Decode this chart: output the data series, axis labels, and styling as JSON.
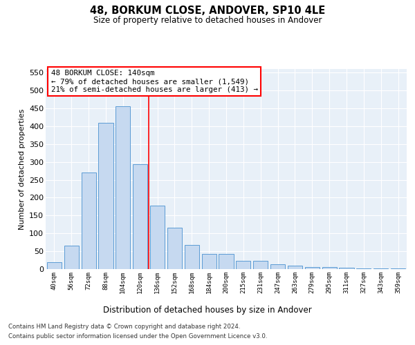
{
  "title": "48, BORKUM CLOSE, ANDOVER, SP10 4LE",
  "subtitle": "Size of property relative to detached houses in Andover",
  "xlabel": "Distribution of detached houses by size in Andover",
  "ylabel": "Number of detached properties",
  "bar_color": "#c6d9f0",
  "bar_edge_color": "#5b9bd5",
  "background_color": "#e8f0f8",
  "grid_color": "#ffffff",
  "categories": [
    "40sqm",
    "56sqm",
    "72sqm",
    "88sqm",
    "104sqm",
    "120sqm",
    "136sqm",
    "152sqm",
    "168sqm",
    "184sqm",
    "200sqm",
    "215sqm",
    "231sqm",
    "247sqm",
    "263sqm",
    "279sqm",
    "295sqm",
    "311sqm",
    "327sqm",
    "343sqm",
    "359sqm"
  ],
  "values": [
    20,
    65,
    270,
    410,
    455,
    293,
    178,
    115,
    67,
    42,
    42,
    23,
    23,
    14,
    10,
    5,
    5,
    4,
    2,
    2,
    2
  ],
  "annotation_title": "48 BORKUM CLOSE: 140sqm",
  "annotation_line1": "← 79% of detached houses are smaller (1,549)",
  "annotation_line2": "21% of semi-detached houses are larger (413) →",
  "red_line_x": 5.5,
  "ylim": [
    0,
    560
  ],
  "yticks": [
    0,
    50,
    100,
    150,
    200,
    250,
    300,
    350,
    400,
    450,
    500,
    550
  ],
  "footnote1": "Contains HM Land Registry data © Crown copyright and database right 2024.",
  "footnote2": "Contains public sector information licensed under the Open Government Licence v3.0."
}
